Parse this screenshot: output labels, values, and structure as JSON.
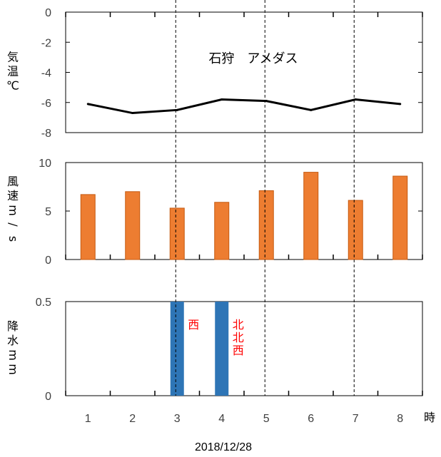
{
  "chart_data": [
    {
      "type": "line",
      "title": "石狩　アメダス",
      "ylabel": "気温　℃",
      "ylim": [
        -8,
        0
      ],
      "yticks": [
        0,
        -2,
        -4,
        -6,
        -8
      ],
      "ytick_labels": [
        "0",
        "-2",
        "-4",
        "-6",
        "-8"
      ],
      "x": [
        1,
        2,
        3,
        4,
        5,
        6,
        7,
        8
      ],
      "series": [
        {
          "values": [
            -6.1,
            -6.7,
            -6.5,
            -5.8,
            -5.9,
            -6.5,
            -5.8,
            -6.1
          ],
          "color": "#000000"
        }
      ]
    },
    {
      "type": "bar",
      "ylabel": "風速　m/s",
      "ylim": [
        0,
        10
      ],
      "yticks": [
        0,
        5,
        10
      ],
      "ytick_labels": [
        "0",
        "5",
        "10"
      ],
      "x": [
        1,
        2,
        3,
        4,
        5,
        6,
        7,
        8
      ],
      "series": [
        {
          "values": [
            6.7,
            7.0,
            5.3,
            5.9,
            7.1,
            9.0,
            6.1,
            8.6
          ],
          "color": "#ed7d31"
        }
      ]
    },
    {
      "type": "bar",
      "ylabel": "降水　mm",
      "ylim": [
        0,
        0.5
      ],
      "yticks": [
        0,
        0.5
      ],
      "ytick_labels": [
        "0",
        "0.5"
      ],
      "x": [
        1,
        2,
        3,
        4,
        5,
        6,
        7,
        8
      ],
      "series": [
        {
          "values": [
            0,
            0,
            0.5,
            0.5,
            0,
            0,
            0,
            0
          ],
          "color": "#2e75b6"
        }
      ],
      "annotations": [
        {
          "text": "西",
          "x": 3,
          "color": "#ff0000"
        },
        {
          "text": "北北西",
          "x": 4,
          "color": "#ff0000"
        }
      ]
    }
  ],
  "shared": {
    "x_tick_labels": [
      "1",
      "2",
      "3",
      "4",
      "5",
      "6",
      "7",
      "8"
    ],
    "x_unit": "時",
    "date_label": "2018/12/28",
    "grid": false,
    "reference_lines": "dashed vertical lines"
  }
}
